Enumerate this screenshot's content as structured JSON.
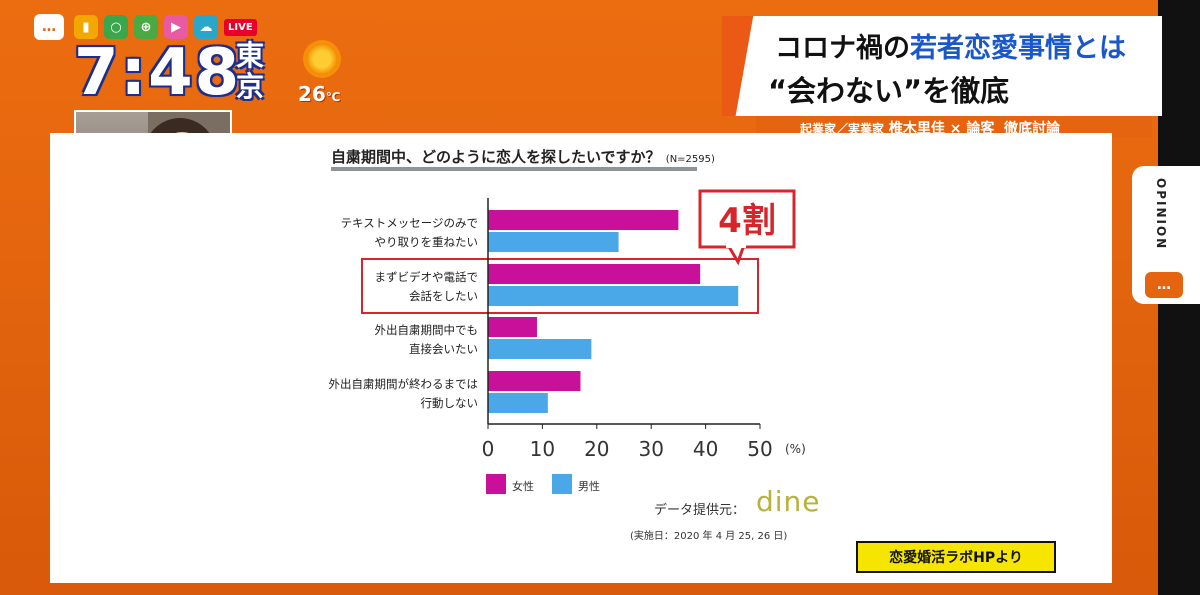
{
  "broadcast": {
    "time": "7:48",
    "city": "東京",
    "temperature": "26",
    "temperature_unit": "℃",
    "live_badge": "LIVE",
    "opinion_tag": "OPINION",
    "headline": {
      "line1_prefix": "コロナ禍の",
      "line1_highlight": "若者恋愛事情とは",
      "line2": "“会わない”を徹底"
    },
    "subline": {
      "role": "起業家／実業家",
      "name": "椎木里佳",
      "sep": "×",
      "role2": "論客",
      "topic": "徹底討論"
    },
    "source_badge": "恋愛婚活ラボHPより"
  },
  "chart_data": {
    "type": "bar",
    "orientation": "horizontal",
    "title": "自粛期間中、どのように恋人を探したいですか？",
    "subtitle": "(N=2595)",
    "categories": [
      [
        "テキストメッセージのみで",
        "やり取りを重ねたい"
      ],
      [
        "まずビデオや電話で",
        "会話をしたい"
      ],
      [
        "外出自粛期間中でも",
        "直接会いたい"
      ],
      [
        "外出自粛期間が終わるまでは",
        "行動しない"
      ]
    ],
    "series": [
      {
        "name": "女性",
        "color": "#c8109a",
        "values": [
          35,
          39,
          9,
          17
        ]
      },
      {
        "name": "男性",
        "color": "#4aa8e8",
        "values": [
          24,
          46,
          19,
          11
        ]
      }
    ],
    "xlim": [
      0,
      50
    ],
    "xticks": [
      0,
      10,
      20,
      30,
      40,
      50
    ],
    "xunit": "(%)",
    "annotation": "4割",
    "highlight_category_index": 1,
    "source_label": "データ提供元：",
    "source_brand": "dine",
    "date_note": "(実施日：2020 年 4 月 25, 26 日)"
  }
}
